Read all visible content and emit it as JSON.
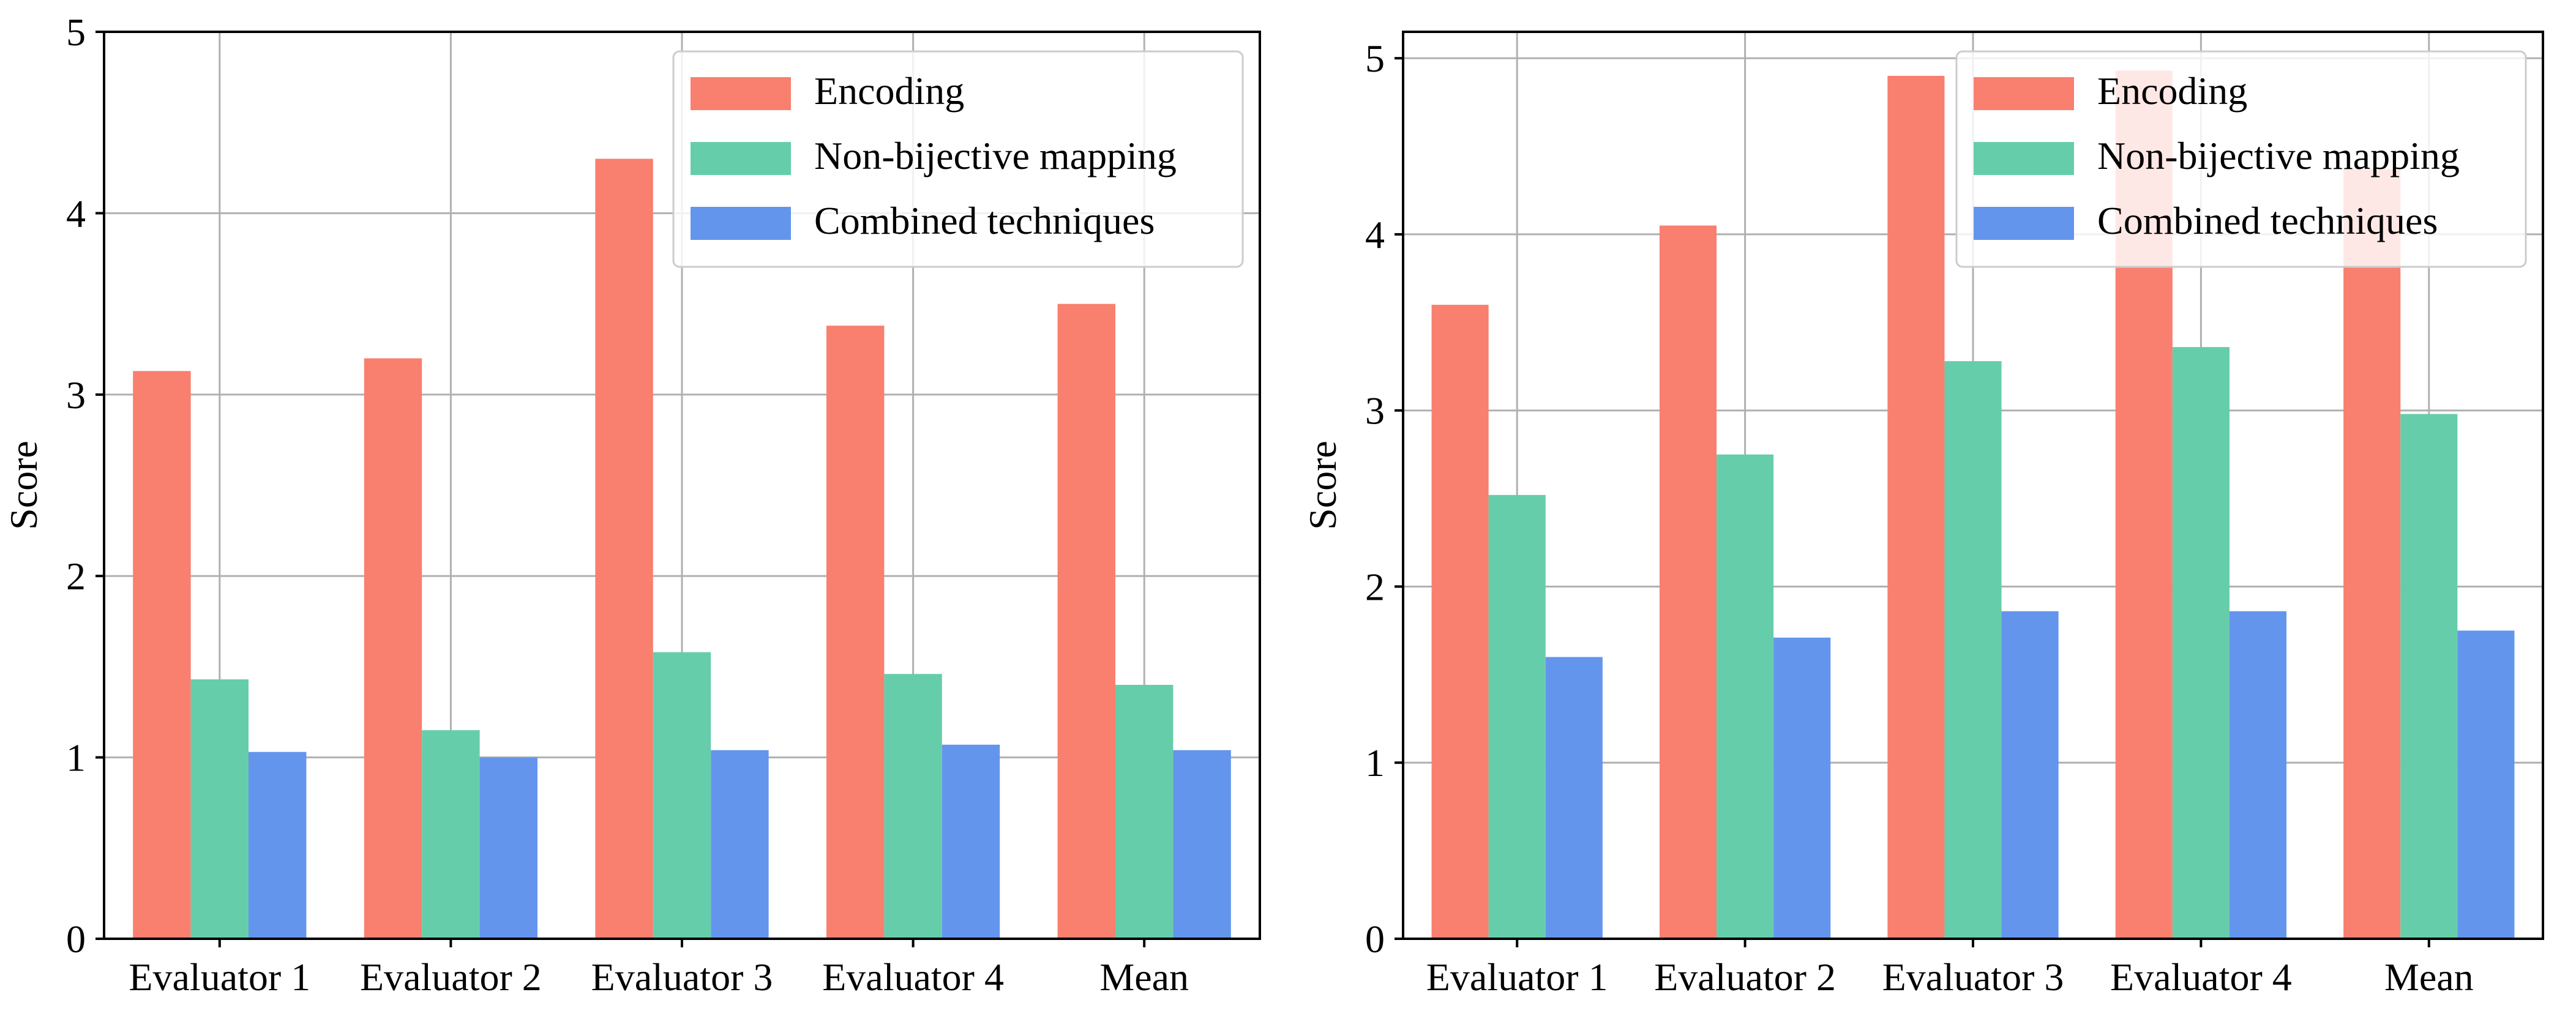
{
  "chart_data": [
    {
      "type": "bar",
      "title": "",
      "xlabel": "",
      "ylabel": "Score",
      "ylim": [
        0,
        5
      ],
      "yticks": [
        "0",
        "1",
        "2",
        "3",
        "4",
        "5"
      ],
      "grid": true,
      "legend_position": "top-right",
      "categories": [
        "Evaluator 1",
        "Evaluator 2",
        "Evaluator 3",
        "Evaluator 4",
        "Mean"
      ],
      "series": [
        {
          "name": "Encoding",
          "color": "#F97F6F",
          "values": [
            3.13,
            3.2,
            4.3,
            3.38,
            3.5
          ]
        },
        {
          "name": "Non-bijective mapping",
          "color": "#66CDAA",
          "values": [
            1.43,
            1.15,
            1.58,
            1.46,
            1.4
          ]
        },
        {
          "name": "Combined techniques",
          "color": "#6495ED",
          "values": [
            1.03,
            1.0,
            1.04,
            1.07,
            1.04
          ]
        }
      ]
    },
    {
      "type": "bar",
      "title": "",
      "xlabel": "",
      "ylabel": "Score",
      "ylim": [
        0,
        5.15
      ],
      "yticks": [
        "0",
        "1",
        "2",
        "3",
        "4",
        "5"
      ],
      "grid": true,
      "legend_position": "top-right",
      "categories": [
        "Evaluator 1",
        "Evaluator 2",
        "Evaluator 3",
        "Evaluator 4",
        "Mean"
      ],
      "series": [
        {
          "name": "Encoding",
          "color": "#F97F6F",
          "values": [
            3.6,
            4.05,
            4.9,
            4.93,
            4.37
          ]
        },
        {
          "name": "Non-bijective mapping",
          "color": "#66CDAA",
          "values": [
            2.52,
            2.75,
            3.28,
            3.36,
            2.98
          ]
        },
        {
          "name": "Combined techniques",
          "color": "#6495ED",
          "values": [
            1.6,
            1.71,
            1.86,
            1.86,
            1.75
          ]
        }
      ]
    }
  ]
}
